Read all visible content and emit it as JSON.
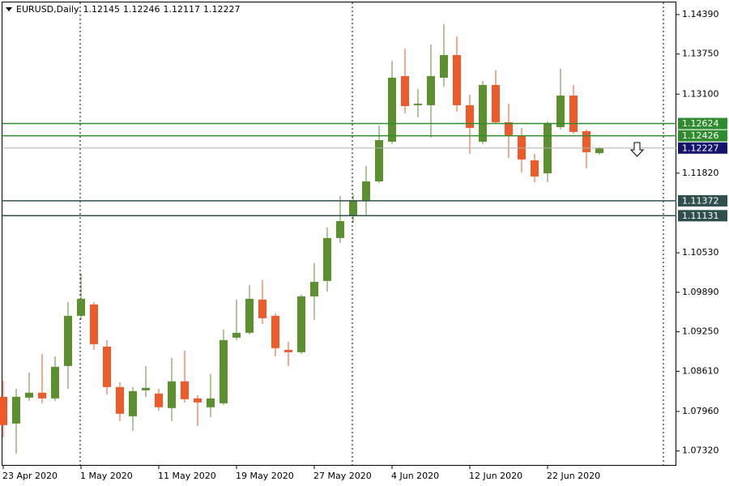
{
  "chart_data": {
    "type": "candlestick",
    "symbol": "EURUSD,Daily",
    "categories": [
      "23 Apr 2020",
      null,
      null,
      null,
      null,
      null,
      "1 May 2020",
      null,
      null,
      null,
      null,
      null,
      "11 May 2020",
      null,
      null,
      null,
      null,
      null,
      "19 May 2020",
      null,
      null,
      null,
      null,
      null,
      "27 May 2020",
      null,
      null,
      null,
      null,
      null,
      "4 Jun 2020",
      null,
      null,
      null,
      null,
      null,
      "12 Jun 2020",
      null,
      null,
      null,
      null,
      null,
      "22 Jun 2020",
      null,
      null,
      null,
      null
    ],
    "open": [
      1.08197,
      1.07764,
      1.08184,
      1.08263,
      1.08171,
      1.08696,
      1.09509,
      1.09693,
      1.09011,
      1.08355,
      1.07882,
      1.08302,
      1.0825,
      1.08014,
      1.08447,
      1.08171,
      1.08027,
      1.08092,
      1.09155,
      1.09234,
      1.09772,
      1.09509,
      1.08958,
      1.08919,
      1.09824,
      1.10074,
      1.10769,
      1.11123,
      1.11372,
      1.11687,
      1.1233,
      1.13393,
      1.12921,
      1.12921,
      1.13367,
      1.13734,
      1.12921,
      1.1233,
      1.13249,
      1.12645,
      1.12422,
      1.12028,
      1.11818,
      1.12566,
      1.13078,
      1.12501,
      1.12145
    ],
    "high": [
      1.0846,
      1.08329,
      1.08591,
      1.08893,
      1.08853,
      1.09732,
      1.10192,
      1.09732,
      1.09116,
      1.08434,
      1.08355,
      1.08696,
      1.08329,
      1.08827,
      1.08945,
      1.08224,
      1.08565,
      1.09286,
      1.09772,
      1.10008,
      1.10087,
      1.09549,
      1.0909,
      1.0985,
      1.10362,
      1.10939,
      1.11451,
      1.11477,
      1.11937,
      1.12593,
      1.13642,
      1.13839,
      1.13183,
      1.13905,
      1.14233,
      1.14036,
      1.13091,
      1.13314,
      1.13485,
      1.12947,
      1.12553,
      1.12133,
      1.12658,
      1.13511,
      1.13249,
      1.12527,
      1.12246
    ],
    "low": [
      1.07541,
      1.07279,
      1.08132,
      1.08092,
      1.08132,
      1.08329,
      1.09444,
      1.08958,
      1.08237,
      1.07804,
      1.07646,
      1.08197,
      1.07974,
      1.07804,
      1.08106,
      1.07725,
      1.07869,
      1.08066,
      1.09116,
      1.09208,
      1.09378,
      1.08853,
      1.08696,
      1.08893,
      1.09444,
      1.09903,
      1.1069,
      1.11018,
      1.11123,
      1.11661,
      1.12291,
      1.12789,
      1.12724,
      1.12396,
      1.13222,
      1.12816,
      1.12133,
      1.12291,
      1.12619,
      1.12068,
      1.11832,
      1.11674,
      1.11674,
      1.12527,
      1.12461,
      1.11897,
      1.12117
    ],
    "close": [
      1.07738,
      1.08197,
      1.08263,
      1.08171,
      1.08683,
      1.09509,
      1.09785,
      1.0905,
      1.08355,
      1.07922,
      1.08289,
      1.08342,
      1.08027,
      1.08447,
      1.08158,
      1.08106,
      1.08171,
      1.09116,
      1.09234,
      1.09785,
      1.0947,
      1.08985,
      1.08919,
      1.09824,
      1.1006,
      1.10769,
      1.11044,
      1.11372,
      1.11687,
      1.12356,
      1.13367,
      1.12907,
      1.12947,
      1.13393,
      1.13734,
      1.12921,
      1.12553,
      1.13249,
      1.12645,
      1.12422,
      1.12042,
      1.11766,
      1.12632,
      1.13078,
      1.12488,
      1.1216,
      1.12227
    ],
    "up_color": "#5c8f2d",
    "down_color": "#ee5a2a",
    "ylim": [
      1.0708,
      1.1456
    ],
    "yticks": [
      {
        "value": 1.1439,
        "label": "1.14390"
      },
      {
        "value": 1.1375,
        "label": "1.13750"
      },
      {
        "value": 1.131,
        "label": "1.13100"
      },
      {
        "value": 1.1182,
        "label": "1.11820"
      },
      {
        "value": 1.1053,
        "label": "1.10530"
      },
      {
        "value": 1.0989,
        "label": "1.09890"
      },
      {
        "value": 1.0925,
        "label": "1.09250"
      },
      {
        "value": 1.0861,
        "label": "1.08610"
      },
      {
        "value": 1.0796,
        "label": "1.07960"
      },
      {
        "value": 1.0732,
        "label": "1.07320"
      }
    ],
    "levels": [
      {
        "value": 1.12624,
        "color": "#2e8b2e"
      },
      {
        "value": 1.12426,
        "color": "#2e8b2e"
      },
      {
        "value": 1.11372,
        "color": "#2f4f4f"
      },
      {
        "value": 1.11131,
        "color": "#2f4f4f"
      }
    ],
    "price_line_color": "#a9b4b4",
    "price_label_color": "#14146e"
  }
}
